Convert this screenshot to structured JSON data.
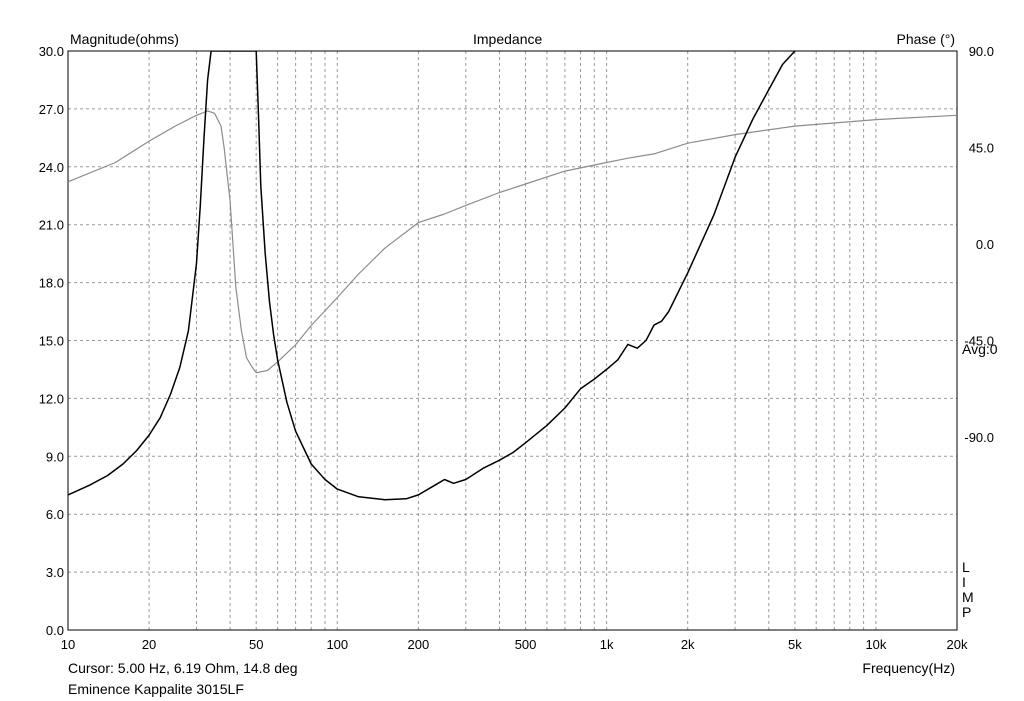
{
  "chart_data": {
    "type": "line",
    "title": "Impedance",
    "ylabel": "Magnitude(ohms)",
    "y2label": "Phase (°)",
    "xlabel": "Frequency(Hz)",
    "xscale": "log",
    "xlim": [
      10,
      20000
    ],
    "ylim": [
      0,
      30
    ],
    "y2lim": [
      -180,
      90
    ],
    "x_ticks": [
      {
        "v": 10,
        "label": "10"
      },
      {
        "v": 20,
        "label": "20"
      },
      {
        "v": 50,
        "label": "50"
      },
      {
        "v": 100,
        "label": "100"
      },
      {
        "v": 200,
        "label": "200"
      },
      {
        "v": 500,
        "label": "500"
      },
      {
        "v": 1000,
        "label": "1k"
      },
      {
        "v": 2000,
        "label": "2k"
      },
      {
        "v": 5000,
        "label": "5k"
      },
      {
        "v": 10000,
        "label": "10k"
      },
      {
        "v": 20000,
        "label": "20k"
      }
    ],
    "y_ticks": [
      "0.0",
      "3.0",
      "6.0",
      "9.0",
      "12.0",
      "15.0",
      "18.0",
      "21.0",
      "24.0",
      "27.0",
      "30.0"
    ],
    "y2_ticks": [
      {
        "v": 90,
        "label": "90.0"
      },
      {
        "v": 45,
        "label": "45.0"
      },
      {
        "v": 0,
        "label": "0.0"
      },
      {
        "v": -45,
        "label": "-45.0"
      },
      {
        "v": -90,
        "label": "-90.0"
      }
    ],
    "y2_note": "Avg:0",
    "grid": true,
    "series": [
      {
        "role": "magnitude",
        "axis": "left",
        "color": "#000000",
        "x": [
          10,
          12,
          14,
          16,
          18,
          20,
          22,
          24,
          26,
          28,
          30,
          31,
          32,
          33,
          34,
          50,
          51,
          52,
          54,
          56,
          58,
          60,
          65,
          70,
          80,
          90,
          100,
          120,
          150,
          180,
          200,
          230,
          250,
          270,
          300,
          350,
          400,
          450,
          500,
          600,
          700,
          800,
          900,
          1000,
          1100,
          1200,
          1300,
          1400,
          1500,
          1600,
          1700,
          2000,
          2500,
          3000,
          3500,
          4000,
          4500,
          5000
        ],
        "y": [
          7.0,
          7.5,
          8.0,
          8.6,
          9.3,
          10.1,
          11.0,
          12.2,
          13.6,
          15.5,
          19.0,
          22.0,
          25.5,
          28.5,
          30.0,
          30.0,
          26.5,
          23.0,
          19.5,
          17.0,
          15.3,
          14.0,
          11.8,
          10.3,
          8.6,
          7.8,
          7.3,
          6.9,
          6.75,
          6.8,
          7.0,
          7.5,
          7.8,
          7.6,
          7.8,
          8.4,
          8.8,
          9.2,
          9.7,
          10.6,
          11.5,
          12.5,
          13.0,
          13.5,
          14.0,
          14.8,
          14.6,
          15.0,
          15.8,
          16.0,
          16.5,
          18.5,
          21.5,
          24.5,
          26.5,
          28.0,
          29.3,
          30.0
        ]
      },
      {
        "role": "phase",
        "axis": "right",
        "color": "#8c8c8c",
        "x": [
          10,
          15,
          20,
          25,
          30,
          33,
          35,
          37,
          38,
          40,
          42,
          44,
          46,
          48,
          50,
          55,
          60,
          70,
          80,
          100,
          120,
          150,
          200,
          250,
          300,
          400,
          500,
          700,
          1000,
          1200,
          1500,
          2000,
          3000,
          5000,
          10000,
          20000
        ],
        "y": [
          29,
          38,
          48,
          55,
          60,
          62,
          61,
          55,
          45,
          20,
          -20,
          -40,
          -53,
          -57,
          -60,
          -59,
          -55,
          -47,
          -38,
          -25,
          -14,
          -2,
          10,
          14,
          18,
          24,
          28,
          34,
          38,
          40,
          42,
          47,
          51,
          55,
          58,
          60
        ]
      }
    ]
  },
  "status": {
    "cursor": "Cursor: 5.00 Hz, 6.19 Ohm, 14.8 deg",
    "device": "Eminence Kappalite 3015LF",
    "side_letters": [
      "L",
      "I",
      "M",
      "P"
    ]
  }
}
